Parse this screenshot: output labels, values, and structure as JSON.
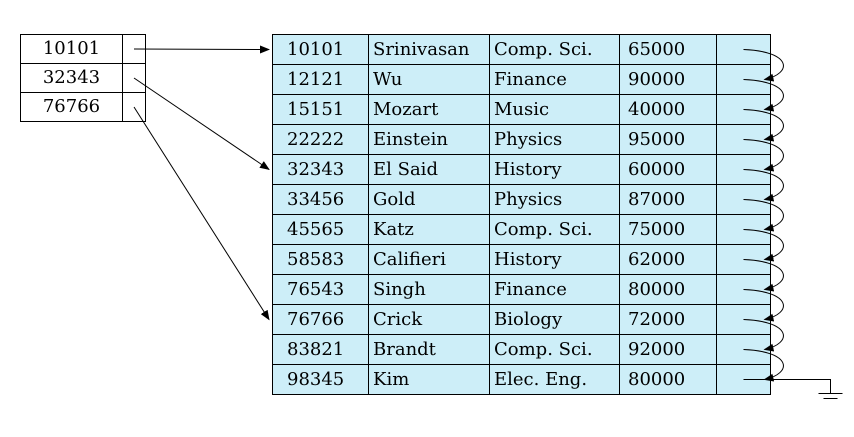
{
  "index": {
    "keys": [
      "10101",
      "32343",
      "76766"
    ]
  },
  "records": [
    {
      "id": "10101",
      "name": "Srinivasan",
      "dept": "Comp. Sci.",
      "salary": "65000"
    },
    {
      "id": "12121",
      "name": "Wu",
      "dept": "Finance",
      "salary": "90000"
    },
    {
      "id": "15151",
      "name": "Mozart",
      "dept": "Music",
      "salary": "40000"
    },
    {
      "id": "22222",
      "name": "Einstein",
      "dept": "Physics",
      "salary": "95000"
    },
    {
      "id": "32343",
      "name": "El Said",
      "dept": "History",
      "salary": "60000"
    },
    {
      "id": "33456",
      "name": "Gold",
      "dept": "Physics",
      "salary": "87000"
    },
    {
      "id": "45565",
      "name": "Katz",
      "dept": "Comp. Sci.",
      "salary": "75000"
    },
    {
      "id": "58583",
      "name": "Califieri",
      "dept": "History",
      "salary": "62000"
    },
    {
      "id": "76543",
      "name": "Singh",
      "dept": "Finance",
      "salary": "80000"
    },
    {
      "id": "76766",
      "name": "Crick",
      "dept": "Biology",
      "salary": "72000"
    },
    {
      "id": "83821",
      "name": "Brandt",
      "dept": "Comp. Sci.",
      "salary": "92000"
    },
    {
      "id": "98345",
      "name": "Kim",
      "dept": "Elec. Eng.",
      "salary": "80000"
    }
  ],
  "colors": {
    "record_fill": "#cdeef8",
    "index_fill": "#ffffff",
    "line": "#000000"
  }
}
